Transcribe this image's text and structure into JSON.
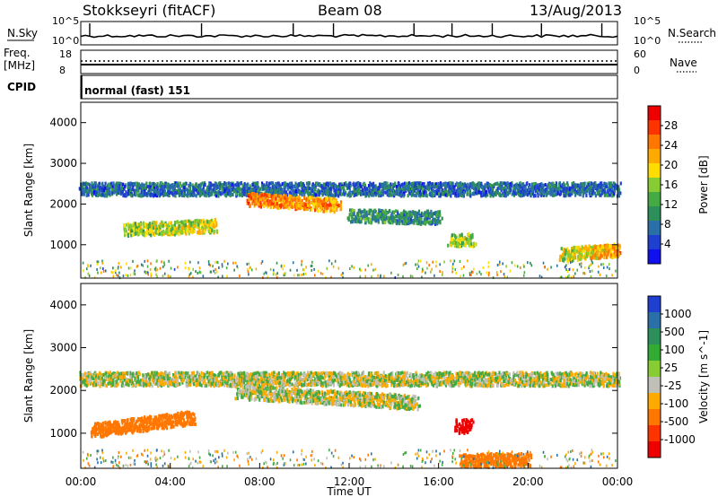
{
  "header": {
    "station": "Stokkseyri (fitACF)",
    "beam": "Beam 08",
    "date": "13/Aug/2013"
  },
  "noise_panel": {
    "left_label": "N.Sky",
    "right_label": "N.Search",
    "left_ticks": [
      "10^5",
      "10^0"
    ],
    "right_ticks": [
      "10^5",
      "10^0"
    ]
  },
  "freq_panel": {
    "left_label_line1": "Freq.",
    "left_label_line2": "[MHz]",
    "right_label": "Nave",
    "left_ticks": [
      "18",
      "8"
    ],
    "right_ticks": [
      "60",
      "0"
    ]
  },
  "cpid": {
    "label": "CPID",
    "value": "normal (fast) 151"
  },
  "chart_data": [
    {
      "type": "heatmap",
      "title": "",
      "ylabel": "Slant Range [km]",
      "xlabel": "",
      "xlim": [
        "00:00",
        "24:00"
      ],
      "ylim": [
        180,
        4500
      ],
      "yticks": [
        "1000",
        "2000",
        "3000",
        "4000"
      ],
      "colorbar": {
        "label": "Power [dB]",
        "ticks": [
          "28",
          "24",
          "20",
          "16",
          "12",
          "8",
          "4"
        ],
        "colors": [
          "#ee0000",
          "#ff3300",
          "#ff7700",
          "#ffaa00",
          "#ffdd00",
          "#88cc33",
          "#44aa44",
          "#2d8f5a",
          "#2a6fa8",
          "#1f3fd0",
          "#1010ee"
        ]
      },
      "series": [
        {
          "name": "",
          "x": [
            0,
            24
          ],
          "y": [
            2400,
            2400
          ],
          "values": [
            6,
            6
          ]
        },
        {
          "name": "",
          "x": [
            2,
            6
          ],
          "y": [
            1400,
            1500
          ],
          "values": [
            14,
            18
          ]
        },
        {
          "name": "",
          "x": [
            7.5,
            11.5
          ],
          "y": [
            2150,
            2000
          ],
          "values": [
            24,
            22
          ]
        },
        {
          "name": "",
          "x": [
            12,
            16
          ],
          "y": [
            1750,
            1700
          ],
          "values": [
            10,
            8
          ]
        },
        {
          "name": "",
          "x": [
            16.5,
            17.5
          ],
          "y": [
            1150,
            1150
          ],
          "values": [
            14,
            16
          ]
        },
        {
          "name": "",
          "x": [
            21.5,
            24
          ],
          "y": [
            800,
            900
          ],
          "values": [
            16,
            22
          ]
        }
      ]
    },
    {
      "type": "heatmap",
      "title": "",
      "ylabel": "Slant Range [km]",
      "xlabel": "Time UT",
      "xlim": [
        "00:00",
        "24:00"
      ],
      "ylim": [
        180,
        4500
      ],
      "yticks": [
        "1000",
        "2000",
        "3000",
        "4000"
      ],
      "xticks": [
        "00:00",
        "04:00",
        "08:00",
        "12:00",
        "16:00",
        "20:00",
        "00:00"
      ],
      "colorbar": {
        "label": "Velocity [m s^-1]",
        "ticks": [
          "1000",
          "500",
          "100",
          "25",
          "-25",
          "-100",
          "-500",
          "-1000"
        ],
        "colors": [
          "#1f3fd0",
          "#2a6fa8",
          "#2d8f5a",
          "#33aa33",
          "#88cc33",
          "#c0c0b8",
          "#ffaa00",
          "#ff7700",
          "#ff3300",
          "#ee0000"
        ]
      },
      "series": [
        {
          "name": "",
          "x": [
            0,
            24
          ],
          "y": [
            2300,
            2300
          ],
          "values": [
            0,
            0
          ]
        },
        {
          "name": "",
          "x": [
            0.5,
            5
          ],
          "y": [
            1100,
            1400
          ],
          "values": [
            -200,
            -400
          ]
        },
        {
          "name": "",
          "x": [
            7,
            15
          ],
          "y": [
            2000,
            1750
          ],
          "values": [
            0,
            0
          ]
        },
        {
          "name": "",
          "x": [
            16.8,
            17.4
          ],
          "y": [
            1200,
            1200
          ],
          "values": [
            -900,
            -900
          ]
        },
        {
          "name": "",
          "x": [
            17,
            20
          ],
          "y": [
            400,
            400
          ],
          "values": [
            -200,
            -200
          ]
        }
      ]
    }
  ]
}
